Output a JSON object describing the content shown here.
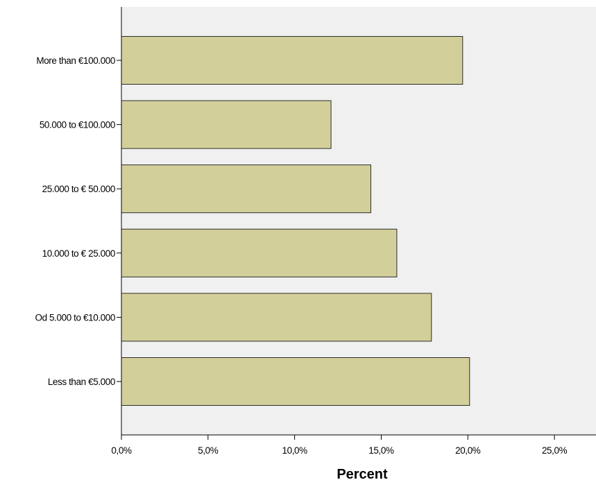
{
  "chart_data": {
    "type": "bar",
    "orientation": "horizontal",
    "categories": [
      "More than   €100.000",
      "50.000 to  €100.000",
      "25.000 to  € 50.000",
      "10.000 to  € 25.000",
      "Od 5.000 to   €10.000",
      "Less than €5.000"
    ],
    "values": [
      19.7,
      12.1,
      14.4,
      15.9,
      17.9,
      20.1
    ],
    "xlabel": "Percent",
    "ylabel": "",
    "xlim": [
      0,
      27.4
    ],
    "xticks": [
      0,
      5,
      10,
      15,
      20,
      25
    ],
    "xtick_labels": [
      "0,0%",
      "5,0%",
      "10,0%",
      "15,0%",
      "20,0%",
      "25,0%"
    ],
    "grid": false,
    "colors": {
      "bar_fill": "#d3cf9a",
      "bar_stroke": "#2b2b2b",
      "plot_background": "#f0f0f0",
      "axis": "#000000"
    }
  }
}
